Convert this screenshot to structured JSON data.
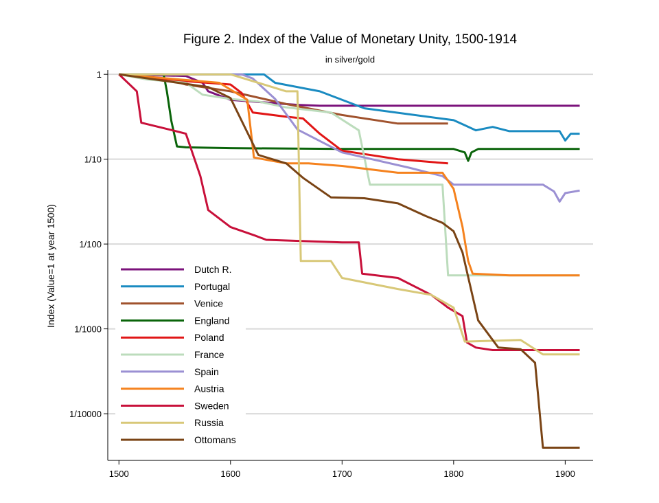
{
  "chart_data": {
    "type": "line",
    "title": "Figure 2. Index of the Value of Monetary Unity, 1500-1914",
    "subtitle": "in silver/gold",
    "xlabel": "",
    "ylabel": "Index (Value=1 at year 1500)",
    "xlim": [
      1490,
      1925
    ],
    "ylim_log10": [
      -4.55,
      0.05
    ],
    "y_scale": "log",
    "grid": "horizontal",
    "legend_position": "bottom-left",
    "x_ticks": [
      1500,
      1600,
      1700,
      1800,
      1900
    ],
    "y_ticks": [
      {
        "value_log10": 0,
        "label": "1"
      },
      {
        "value_log10": -1,
        "label": "1/10"
      },
      {
        "value_log10": -2,
        "label": "1/100"
      },
      {
        "value_log10": -3,
        "label": "1/1000"
      },
      {
        "value_log10": -4,
        "label": "1/10000"
      }
    ],
    "series": [
      {
        "name": "Dutch R.",
        "color": "#7b127b",
        "points": [
          [
            1500,
            0
          ],
          [
            1560,
            -0.02
          ],
          [
            1575,
            -0.1
          ],
          [
            1580,
            -0.2
          ],
          [
            1600,
            -0.3
          ],
          [
            1620,
            -0.32
          ],
          [
            1640,
            -0.34
          ],
          [
            1660,
            -0.36
          ],
          [
            1680,
            -0.37
          ],
          [
            1850,
            -0.37
          ],
          [
            1913,
            -0.37
          ]
        ]
      },
      {
        "name": "Portugal",
        "color": "#1a8bc1",
        "points": [
          [
            1500,
            0
          ],
          [
            1630,
            0
          ],
          [
            1640,
            -0.1
          ],
          [
            1680,
            -0.2
          ],
          [
            1720,
            -0.4
          ],
          [
            1800,
            -0.54
          ],
          [
            1810,
            -0.6
          ],
          [
            1820,
            -0.66
          ],
          [
            1835,
            -0.62
          ],
          [
            1850,
            -0.67
          ],
          [
            1895,
            -0.67
          ],
          [
            1900,
            -0.78
          ],
          [
            1905,
            -0.7
          ],
          [
            1913,
            -0.7
          ]
        ]
      },
      {
        "name": "Venice",
        "color": "#a0522d",
        "points": [
          [
            1500,
            0
          ],
          [
            1540,
            -0.05
          ],
          [
            1560,
            -0.12
          ],
          [
            1600,
            -0.2
          ],
          [
            1650,
            -0.35
          ],
          [
            1700,
            -0.48
          ],
          [
            1750,
            -0.58
          ],
          [
            1795,
            -0.58
          ]
        ]
      },
      {
        "name": "England",
        "color": "#0a640a",
        "points": [
          [
            1500,
            0
          ],
          [
            1540,
            0
          ],
          [
            1543,
            -0.2
          ],
          [
            1547,
            -0.55
          ],
          [
            1552,
            -0.85
          ],
          [
            1560,
            -0.86
          ],
          [
            1600,
            -0.87
          ],
          [
            1700,
            -0.88
          ],
          [
            1800,
            -0.88
          ],
          [
            1810,
            -0.92
          ],
          [
            1813,
            -1.02
          ],
          [
            1816,
            -0.92
          ],
          [
            1822,
            -0.88
          ],
          [
            1913,
            -0.88
          ]
        ]
      },
      {
        "name": "Poland",
        "color": "#e11616",
        "points": [
          [
            1500,
            0
          ],
          [
            1528,
            -0.05
          ],
          [
            1560,
            -0.08
          ],
          [
            1600,
            -0.12
          ],
          [
            1610,
            -0.22
          ],
          [
            1620,
            -0.45
          ],
          [
            1650,
            -0.5
          ],
          [
            1665,
            -0.52
          ],
          [
            1680,
            -0.7
          ],
          [
            1700,
            -0.9
          ],
          [
            1750,
            -1.0
          ],
          [
            1795,
            -1.05
          ]
        ]
      },
      {
        "name": "France",
        "color": "#bcdcbc",
        "points": [
          [
            1500,
            0
          ],
          [
            1525,
            -0.06
          ],
          [
            1560,
            -0.1
          ],
          [
            1575,
            -0.24
          ],
          [
            1600,
            -0.29
          ],
          [
            1625,
            -0.32
          ],
          [
            1650,
            -0.39
          ],
          [
            1690,
            -0.45
          ],
          [
            1715,
            -0.66
          ],
          [
            1725,
            -1.3
          ],
          [
            1790,
            -1.3
          ],
          [
            1795,
            -2.37
          ],
          [
            1913,
            -2.37
          ]
        ]
      },
      {
        "name": "Spain",
        "color": "#9b90d3",
        "points": [
          [
            1500,
            0
          ],
          [
            1610,
            0
          ],
          [
            1620,
            -0.05
          ],
          [
            1640,
            -0.29
          ],
          [
            1660,
            -0.65
          ],
          [
            1700,
            -0.92
          ],
          [
            1760,
            -1.1
          ],
          [
            1790,
            -1.2
          ],
          [
            1800,
            -1.3
          ],
          [
            1880,
            -1.3
          ],
          [
            1890,
            -1.38
          ],
          [
            1895,
            -1.5
          ],
          [
            1900,
            -1.4
          ],
          [
            1913,
            -1.37
          ]
        ]
      },
      {
        "name": "Austria",
        "color": "#f5821e",
        "points": [
          [
            1500,
            0
          ],
          [
            1590,
            -0.1
          ],
          [
            1615,
            -0.3
          ],
          [
            1621,
            -0.98
          ],
          [
            1650,
            -1.05
          ],
          [
            1670,
            -1.05
          ],
          [
            1700,
            -1.08
          ],
          [
            1750,
            -1.16
          ],
          [
            1790,
            -1.16
          ],
          [
            1800,
            -1.35
          ],
          [
            1808,
            -1.8
          ],
          [
            1813,
            -2.2
          ],
          [
            1817,
            -2.35
          ],
          [
            1850,
            -2.37
          ],
          [
            1913,
            -2.37
          ]
        ]
      },
      {
        "name": "Sweden",
        "color": "#c8103a",
        "points": [
          [
            1500,
            0
          ],
          [
            1516,
            -0.2
          ],
          [
            1520,
            -0.57
          ],
          [
            1545,
            -0.65
          ],
          [
            1560,
            -0.7
          ],
          [
            1573,
            -1.2
          ],
          [
            1580,
            -1.6
          ],
          [
            1600,
            -1.8
          ],
          [
            1622,
            -1.9
          ],
          [
            1632,
            -1.95
          ],
          [
            1700,
            -1.98
          ],
          [
            1715,
            -1.98
          ],
          [
            1718,
            -2.35
          ],
          [
            1750,
            -2.4
          ],
          [
            1780,
            -2.6
          ],
          [
            1795,
            -2.75
          ],
          [
            1808,
            -2.85
          ],
          [
            1812,
            -3.16
          ],
          [
            1820,
            -3.22
          ],
          [
            1835,
            -3.25
          ],
          [
            1913,
            -3.25
          ]
        ]
      },
      {
        "name": "Russia",
        "color": "#d8c878",
        "points": [
          [
            1500,
            0
          ],
          [
            1600,
            0
          ],
          [
            1650,
            -0.2
          ],
          [
            1660,
            -0.2
          ],
          [
            1663,
            -2.2
          ],
          [
            1690,
            -2.2
          ],
          [
            1700,
            -2.4
          ],
          [
            1750,
            -2.53
          ],
          [
            1780,
            -2.6
          ],
          [
            1800,
            -2.75
          ],
          [
            1810,
            -3.15
          ],
          [
            1860,
            -3.13
          ],
          [
            1880,
            -3.3
          ],
          [
            1913,
            -3.3
          ]
        ]
      },
      {
        "name": "Ottomans",
        "color": "#7a4415",
        "points": [
          [
            1500,
            0
          ],
          [
            1580,
            -0.15
          ],
          [
            1600,
            -0.28
          ],
          [
            1625,
            -0.95
          ],
          [
            1650,
            -1.05
          ],
          [
            1665,
            -1.22
          ],
          [
            1690,
            -1.45
          ],
          [
            1720,
            -1.46
          ],
          [
            1750,
            -1.52
          ],
          [
            1775,
            -1.67
          ],
          [
            1790,
            -1.75
          ],
          [
            1800,
            -1.85
          ],
          [
            1808,
            -2.1
          ],
          [
            1822,
            -2.9
          ],
          [
            1840,
            -3.22
          ],
          [
            1860,
            -3.24
          ],
          [
            1873,
            -3.4
          ],
          [
            1880,
            -4.4
          ],
          [
            1913,
            -4.4
          ]
        ]
      }
    ]
  }
}
